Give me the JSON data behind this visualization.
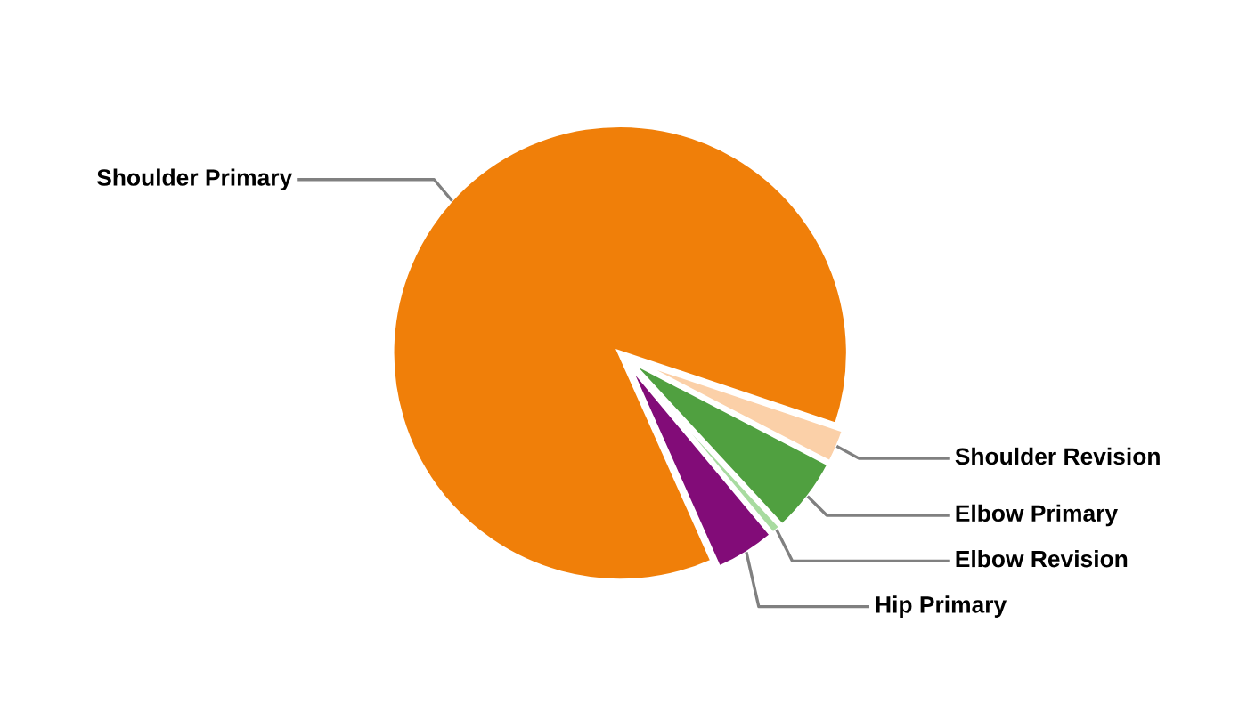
{
  "chart_data": {
    "type": "pie",
    "categories": [
      "Shoulder Primary",
      "Shoulder Revision",
      "Elbow Primary",
      "Elbow Revision",
      "Hip Primary"
    ],
    "values": [
      86.8,
      2.5,
      5.5,
      0.8,
      4.4
    ],
    "colors": [
      "#f07f09",
      "#fbd0a8",
      "#50a040",
      "#a8dba0",
      "#820c78"
    ],
    "legend": false
  }
}
